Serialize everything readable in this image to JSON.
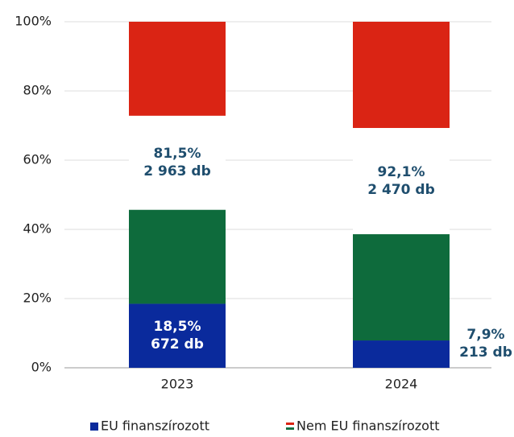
{
  "chart_data": {
    "type": "stacked_bar",
    "categories": [
      "2023",
      "2024"
    ],
    "series": [
      {
        "name": "EU finanszírozott",
        "color": "#0a2a9c",
        "values": [
          18.5,
          7.9
        ],
        "value_labels": [
          "18,5%",
          "7,9%"
        ],
        "count_labels": [
          "672 db",
          "213 db"
        ]
      },
      {
        "name": "Nem EU finanszírozott",
        "stripe_colors": [
          "#0e6b3c",
          "#ffffff",
          "#da2414"
        ],
        "values": [
          81.5,
          92.1
        ],
        "value_labels": [
          "81,5%",
          "92,1%"
        ],
        "count_labels": [
          "2 963 db",
          "2 470 db"
        ]
      }
    ],
    "ylim": [
      0,
      100
    ],
    "yticks": [
      {
        "value": 0,
        "label": "0%"
      },
      {
        "value": 20,
        "label": "20%"
      },
      {
        "value": 40,
        "label": "40%"
      },
      {
        "value": 60,
        "label": "60%"
      },
      {
        "value": 80,
        "label": "80%"
      },
      {
        "value": 100,
        "label": "100%"
      }
    ],
    "grid": true
  }
}
